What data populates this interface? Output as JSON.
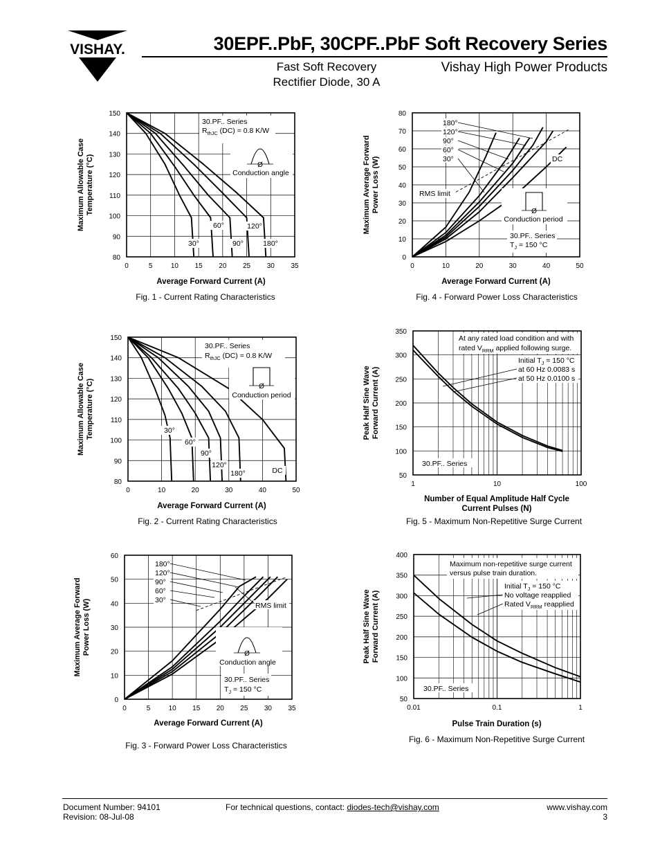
{
  "header": {
    "logo_text": "VISHAY.",
    "title": "30EPF..PbF, 30CPF..PbF Soft Recovery Series",
    "subtitle_line1": "Fast Soft Recovery",
    "subtitle_line2": "Rectifier Diode, 30 A",
    "division": "Vishay High Power Products"
  },
  "footer": {
    "doc_number": "Document Number: 94101",
    "revision": "Revision: 08-Jul-08",
    "contact_prefix": "For technical questions, contact: ",
    "contact_email": "diodes-tech@vishay.com",
    "website": "www.vishay.com",
    "page": "3"
  },
  "chart_data": [
    {
      "id": "fig1",
      "type": "line",
      "caption": "Fig. 1 - Current Rating Characteristics",
      "xlabel": "Average Forward Current (A)",
      "ylabel": [
        "Maximum Allowable Case",
        "Temperature (°C)"
      ],
      "xlim": [
        0,
        35
      ],
      "ylim": [
        80,
        150
      ],
      "xticks": [
        0,
        5,
        10,
        15,
        20,
        25,
        30,
        35
      ],
      "yticks": [
        80,
        90,
        100,
        110,
        120,
        130,
        140,
        150
      ],
      "grid": true,
      "annotations": [
        "30.PF.. Series",
        "R",
        "thJC",
        " (DC) = 0.8 K/W",
        "Conduction angle",
        "Ø"
      ],
      "series": [
        {
          "name": "30°",
          "x": [
            0,
            4,
            8,
            11,
            13.5,
            14
          ],
          "y": [
            150,
            140,
            125,
            110,
            99,
            80
          ]
        },
        {
          "name": "60°",
          "x": [
            0,
            5,
            10,
            14,
            17.5,
            18
          ],
          "y": [
            150,
            140,
            124,
            110,
            99,
            80
          ]
        },
        {
          "name": "90°",
          "x": [
            0,
            6,
            12,
            17,
            21.5,
            22
          ],
          "y": [
            150,
            140,
            124,
            110,
            99,
            80
          ]
        },
        {
          "name": "120°",
          "x": [
            0,
            7,
            14,
            20,
            25,
            25.5
          ],
          "y": [
            150,
            140,
            125,
            111,
            99,
            80
          ]
        },
        {
          "name": "180°",
          "x": [
            0,
            8,
            16,
            23,
            28.5,
            29
          ],
          "y": [
            150,
            140,
            125,
            111,
            99,
            80
          ]
        }
      ]
    },
    {
      "id": "fig2",
      "type": "line",
      "caption": "Fig. 2 - Current Rating Characteristics",
      "xlabel": "Average Forward Current (A)",
      "ylabel": [
        "Maximum Allowable Case",
        "Temperature (°C)"
      ],
      "xlim": [
        0,
        50
      ],
      "ylim": [
        80,
        150
      ],
      "xticks": [
        0,
        10,
        20,
        30,
        40,
        50
      ],
      "yticks": [
        80,
        90,
        100,
        110,
        120,
        130,
        140,
        150
      ],
      "grid": true,
      "annotations": [
        "30.PF.. Series",
        "R",
        "thJC",
        " (DC) = 0.8 K/W",
        "Conduction period",
        "Ø"
      ],
      "series": [
        {
          "name": "30°",
          "x": [
            0,
            4,
            8,
            11,
            12.5,
            13
          ],
          "y": [
            150,
            140,
            125,
            112,
            101,
            80
          ]
        },
        {
          "name": "60°",
          "x": [
            0,
            6,
            12,
            16,
            19,
            19.5
          ],
          "y": [
            150,
            140,
            125,
            113,
            101,
            80
          ]
        },
        {
          "name": "90°",
          "x": [
            0,
            7,
            15,
            20,
            24,
            24.5
          ],
          "y": [
            150,
            140,
            125,
            113,
            101,
            80
          ]
        },
        {
          "name": "120°",
          "x": [
            0,
            9,
            18,
            24,
            27.5,
            28
          ],
          "y": [
            150,
            140,
            126,
            114,
            101,
            80
          ]
        },
        {
          "name": "180°",
          "x": [
            0,
            11,
            22,
            29,
            33,
            33.5
          ],
          "y": [
            150,
            140,
            126,
            114,
            101,
            80
          ]
        },
        {
          "name": "DC",
          "x": [
            0,
            15,
            30,
            40,
            46.5,
            47
          ],
          "y": [
            150,
            140,
            125,
            110,
            96,
            80
          ]
        }
      ]
    },
    {
      "id": "fig3",
      "type": "line",
      "caption": "Fig. 3 - Forward Power Loss Characteristics",
      "xlabel": "Average Forward Current (A)",
      "ylabel": [
        "Maximum Average Forward",
        "Power Loss (W)"
      ],
      "xlim": [
        0,
        35
      ],
      "ylim": [
        0,
        60
      ],
      "xticks": [
        0,
        5,
        10,
        15,
        20,
        25,
        30,
        35
      ],
      "yticks": [
        0,
        10,
        20,
        30,
        40,
        50,
        60
      ],
      "grid": true,
      "annotations": [
        "RMS limit",
        "Conduction angle",
        "Ø",
        "30.PF.. Series",
        "T",
        "J",
        " = 150 °C"
      ],
      "series": [
        {
          "name": "180°",
          "x": [
            0,
            10,
            20,
            30,
            34
          ],
          "y": [
            0,
            10.5,
            25,
            42,
            50
          ]
        },
        {
          "name": "120°",
          "x": [
            0,
            10,
            20,
            28,
            32
          ],
          "y": [
            0,
            11.5,
            27.5,
            43,
            51
          ]
        },
        {
          "name": "90°",
          "x": [
            0,
            10,
            20,
            26,
            30.5
          ],
          "y": [
            0,
            12.5,
            30,
            42,
            51
          ]
        },
        {
          "name": "60°",
          "x": [
            0,
            10,
            20,
            25,
            29
          ],
          "y": [
            0,
            13.5,
            32.5,
            43,
            51
          ]
        },
        {
          "name": "30°",
          "x": [
            0,
            10,
            20,
            24,
            27.5
          ],
          "y": [
            0,
            16,
            37.5,
            47,
            51
          ]
        }
      ],
      "rms_limit": {
        "x": [
          15,
          34
        ],
        "y": [
          37,
          51
        ]
      }
    },
    {
      "id": "fig4",
      "type": "line",
      "caption": "Fig. 4 - Forward Power Loss Characteristics",
      "xlabel": "Average Forward Current (A)",
      "ylabel": [
        "Maximum Average Forward",
        "Power Loss (W)"
      ],
      "xlim": [
        0,
        50
      ],
      "ylim": [
        0,
        80
      ],
      "xticks": [
        0,
        10,
        20,
        30,
        40,
        50
      ],
      "yticks": [
        0,
        10,
        20,
        30,
        40,
        50,
        60,
        70,
        80
      ],
      "grid": true,
      "annotations": [
        "RMS limit",
        "Conduction period",
        "Ø",
        "30.PF.. Series",
        "T",
        "J",
        " = 150 °C"
      ],
      "series": [
        {
          "name": "180°",
          "x": [
            0,
            10,
            20,
            30,
            40,
            42
          ],
          "y": [
            0,
            10,
            25,
            44,
            64,
            70
          ]
        },
        {
          "name": "120°",
          "x": [
            0,
            10,
            20,
            30,
            36,
            39
          ],
          "y": [
            0,
            11,
            28,
            48,
            62,
            72
          ]
        },
        {
          "name": "90°",
          "x": [
            0,
            10,
            20,
            30,
            35
          ],
          "y": [
            0,
            12,
            30.5,
            52,
            66
          ]
        },
        {
          "name": "60°",
          "x": [
            0,
            10,
            20,
            28,
            32
          ],
          "y": [
            0,
            13.5,
            34,
            54,
            66
          ]
        },
        {
          "name": "30°",
          "x": [
            0,
            10,
            17,
            22,
            25
          ],
          "y": [
            0,
            16.5,
            36,
            56,
            69
          ]
        },
        {
          "name": "DC",
          "x": [
            0,
            10,
            20,
            30,
            40,
            46
          ],
          "y": [
            0,
            8.5,
            20,
            33,
            50,
            61
          ]
        }
      ],
      "rms_limit": {
        "x": [
          13,
          47
        ],
        "y": [
          36,
          71
        ]
      }
    },
    {
      "id": "fig5",
      "type": "line",
      "caption": "Fig. 5 - Maximum Non-Repetitive Surge Current",
      "xlabel": [
        "Number of Equal Amplitude Half Cycle",
        "Current Pulses (N)"
      ],
      "ylabel": [
        "Peak Half Sine Wave",
        "Forward Current (A)"
      ],
      "xscale": "log",
      "xlim": [
        1,
        100
      ],
      "ylim": [
        50,
        350
      ],
      "xticks": [
        1,
        10,
        100
      ],
      "yticks": [
        50,
        100,
        150,
        200,
        250,
        300,
        350
      ],
      "grid": true,
      "annotations": [
        "At any rated load condition and with",
        "rated V",
        "RRM",
        " applied following surge.",
        "Initial T",
        "J",
        " = 150 °C",
        "at 60 Hz 0.0083 s",
        "at 50 Hz 0.0100 s",
        "30.PF.. Series"
      ],
      "series": [
        {
          "name": "at 60 Hz 0.0083 s",
          "x": [
            1,
            2,
            3,
            5,
            10,
            20,
            40,
            60
          ],
          "y": [
            320,
            262,
            232,
            198,
            160,
            132,
            110,
            101
          ]
        },
        {
          "name": "at 50 Hz 0.0100 s",
          "x": [
            1,
            2,
            3,
            5,
            10,
            20,
            40,
            60
          ],
          "y": [
            310,
            255,
            225,
            193,
            156,
            128,
            107,
            99
          ]
        }
      ]
    },
    {
      "id": "fig6",
      "type": "line",
      "caption": "Fig. 6 - Maximum Non-Repetitive Surge Current",
      "xlabel": "Pulse Train Duration (s)",
      "ylabel": [
        "Peak Half Sine Wave",
        "Forward Current (A)"
      ],
      "xscale": "log",
      "xlim": [
        0.01,
        1
      ],
      "ylim": [
        50,
        400
      ],
      "xticks": [
        0.01,
        0.1,
        1
      ],
      "xticklabels": [
        "0.01",
        "0.1",
        "1"
      ],
      "yticks": [
        50,
        100,
        150,
        200,
        250,
        300,
        350,
        400
      ],
      "grid": true,
      "annotations": [
        "Maximum non-repetitive surge current",
        "versus pulse train duration.",
        "Initial T",
        "J",
        " = 150 °C",
        "No voltage reapplied",
        "Rated V",
        "RRM",
        " reapplied",
        "30.PF.. Series"
      ],
      "series": [
        {
          "name": "No voltage reapplied",
          "x": [
            0.01,
            0.02,
            0.05,
            0.1,
            0.2,
            0.5,
            1
          ],
          "y": [
            350,
            293,
            230,
            190,
            160,
            125,
            103
          ]
        },
        {
          "name": "Rated VRRM reapplied",
          "x": [
            0.01,
            0.02,
            0.05,
            0.1,
            0.2,
            0.5,
            1
          ],
          "y": [
            307,
            255,
            199,
            165,
            138,
            110,
            90
          ]
        }
      ]
    }
  ]
}
